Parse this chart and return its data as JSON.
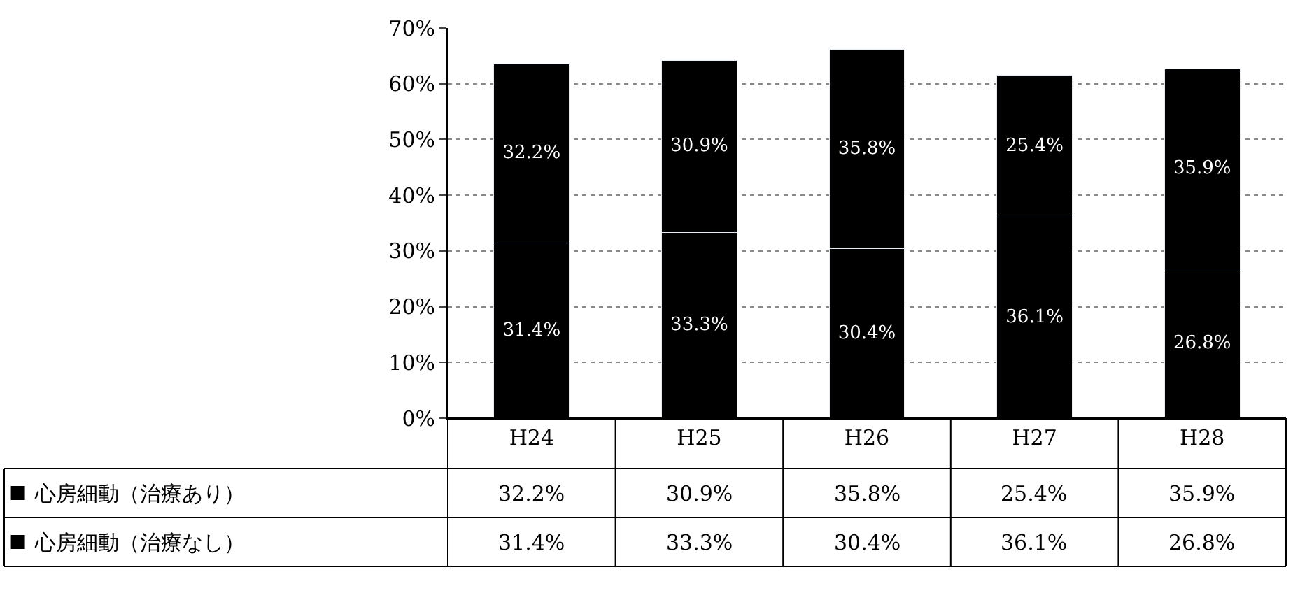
{
  "chart_data": {
    "type": "bar",
    "stacked": true,
    "grid": "y",
    "legend": "bottom left",
    "categories": [
      "H24",
      "H25",
      "H26",
      "H27",
      "H28"
    ],
    "series": [
      {
        "name": "心房細動（治療なし）",
        "color": "#000000",
        "values": [
          31.4,
          33.3,
          30.4,
          36.1,
          26.8
        ],
        "value_labels": [
          "31.4%",
          "33.3%",
          "30.4%",
          "36.1%",
          "26.8%"
        ]
      },
      {
        "name": "心房細動（治療あり）",
        "color": "#000000",
        "values": [
          32.2,
          30.9,
          35.8,
          25.4,
          35.9
        ],
        "value_labels": [
          "32.2%",
          "30.9%",
          "35.8%",
          "25.4%",
          "35.9%"
        ]
      }
    ],
    "ylim": [
      0,
      70
    ],
    "yticks": [
      {
        "value": 0,
        "label": "0%"
      },
      {
        "value": 10,
        "label": "10%"
      },
      {
        "value": 20,
        "label": "20%"
      },
      {
        "value": 30,
        "label": "30%"
      },
      {
        "value": 40,
        "label": "40%"
      },
      {
        "value": 50,
        "label": "50%"
      },
      {
        "value": 60,
        "label": "60%"
      },
      {
        "value": 70,
        "label": "70%"
      }
    ]
  }
}
